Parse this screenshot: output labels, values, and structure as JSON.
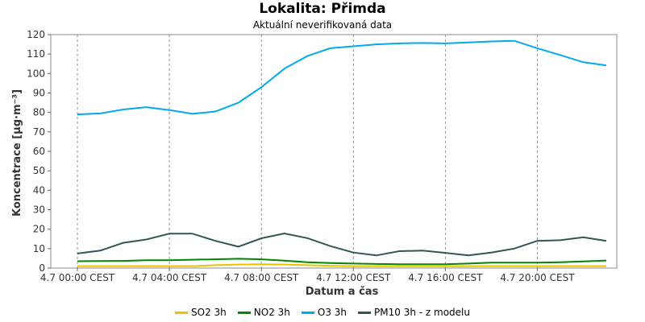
{
  "chart_data": {
    "type": "line",
    "title": "Lokalita: Přimda",
    "subtitle": "Aktuální neverifikovaná data",
    "xlabel": "Datum a čas",
    "ylabel": "Koncentrace [µg·m⁻³]",
    "ylim": [
      0,
      120
    ],
    "yticks": [
      0,
      10,
      20,
      30,
      40,
      50,
      60,
      70,
      80,
      90,
      100,
      110,
      120
    ],
    "x": [
      "00:00",
      "01:00",
      "02:00",
      "03:00",
      "04:00",
      "05:00",
      "06:00",
      "07:00",
      "08:00",
      "09:00",
      "10:00",
      "11:00",
      "12:00",
      "13:00",
      "14:00",
      "15:00",
      "16:00",
      "17:00",
      "18:00",
      "19:00",
      "20:00",
      "21:00",
      "22:00",
      "23:00"
    ],
    "xtick_labels": [
      "4.7 00:00 CEST",
      "4.7 04:00 CEST",
      "4.7 08:00 CEST",
      "4.7 12:00 CEST",
      "4.7 16:00 CEST",
      "4.7 20:00 CEST"
    ],
    "xticks_at": [
      "00:00",
      "04:00",
      "08:00",
      "12:00",
      "16:00",
      "20:00"
    ],
    "grid": true,
    "legend_position": "bottom",
    "series": [
      {
        "name": "SO2 3h",
        "color": "#f0c000",
        "values": [
          1,
          1,
          1,
          1,
          1,
          1,
          1.5,
          1.8,
          2,
          1.8,
          1.5,
          1.2,
          1,
          1,
          1,
          1,
          1,
          1,
          1,
          1,
          1,
          1,
          1,
          1
        ]
      },
      {
        "name": "NO2 3h",
        "color": "#008800",
        "values": [
          3.5,
          3.6,
          3.7,
          4,
          4,
          4.3,
          4.5,
          4.8,
          4.5,
          3.8,
          3,
          2.6,
          2.3,
          2.1,
          2,
          2,
          2,
          2.3,
          2.8,
          2.8,
          2.8,
          3,
          3.4,
          3.9
        ]
      },
      {
        "name": "O3 3h",
        "color": "#00aaee",
        "values": [
          79,
          79.5,
          81.5,
          82.7,
          81.2,
          79.3,
          80.5,
          85,
          93,
          102.5,
          109,
          113,
          114,
          115,
          115.5,
          115.7,
          115.5,
          116,
          116.5,
          116.8,
          113,
          109.5,
          105.8,
          104.2
        ]
      },
      {
        "name": "PM10 3h - z modelu",
        "color": "#335555",
        "values": [
          7.5,
          9,
          13,
          14.7,
          17.7,
          17.7,
          14,
          11,
          15.3,
          17.8,
          15.4,
          11.3,
          8,
          6.5,
          8.7,
          9,
          7.8,
          6.5,
          8,
          10,
          14,
          14.3,
          15.8,
          14
        ]
      }
    ]
  }
}
